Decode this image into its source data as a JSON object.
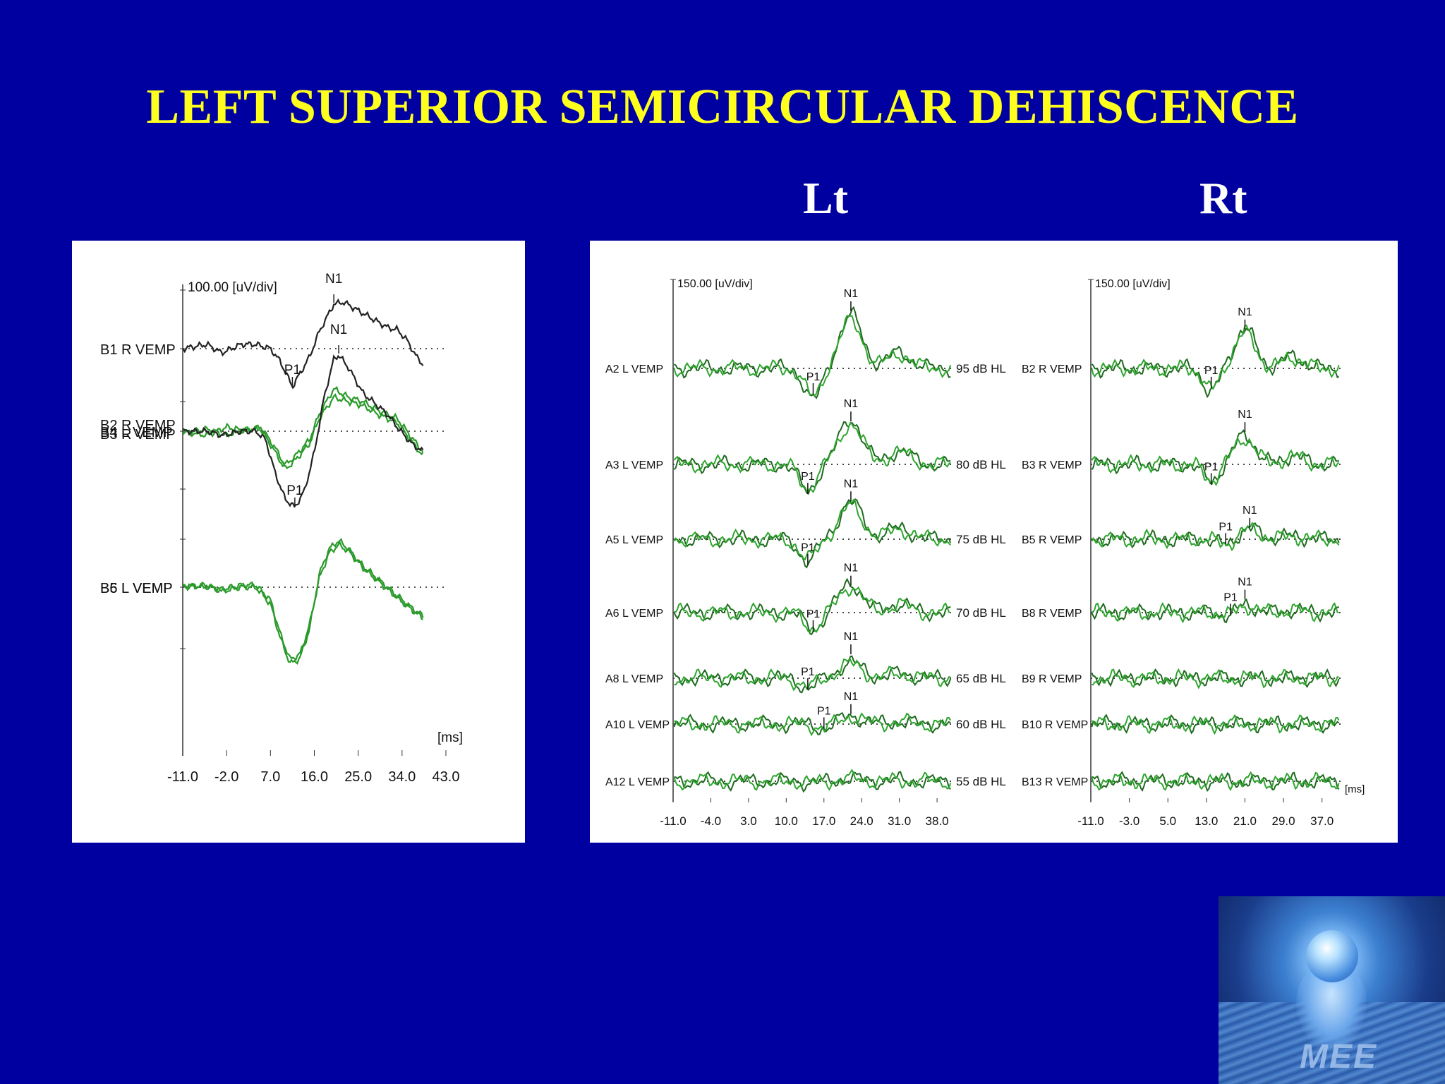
{
  "slide": {
    "title": "LEFT SUPERIOR SEMICIRCULAR DEHISCENCE",
    "label_lt": "Lt",
    "label_rt": "Rt"
  },
  "colors": {
    "background": "#0000a0",
    "title": "#ffff1e",
    "trace_green": "#2a9a2a",
    "trace_dark": "#1f5f1f",
    "trace_black": "#222222"
  },
  "logo": {
    "icon": "hands-holding-globe-logo",
    "text": "MEE"
  },
  "chart_data": [
    {
      "type": "line",
      "name": "left-panel",
      "scale_label": "100.00 [uV/div]",
      "unit_label": "[ms]",
      "x_ticks": [
        "-11.0",
        "-2.0",
        "7.0",
        "16.0",
        "25.0",
        "34.0",
        "43.0"
      ],
      "xlim": [
        -11,
        43
      ],
      "traces": [
        {
          "label": "B1  R VEMP",
          "baseline": 0,
          "color": "black",
          "shape": [
            [
              -11,
              0
            ],
            [
              -6,
              0.1
            ],
            [
              -3,
              -0.1
            ],
            [
              1,
              0.1
            ],
            [
              4,
              0.1
            ],
            [
              7,
              0
            ],
            [
              9,
              -0.3
            ],
            [
              11.5,
              -0.9
            ],
            [
              13,
              -0.6
            ],
            [
              15,
              -0.2
            ],
            [
              17,
              0.4
            ],
            [
              20,
              1.05
            ],
            [
              22,
              1.1
            ],
            [
              25,
              0.9
            ],
            [
              28,
              0.7
            ],
            [
              31,
              0.5
            ],
            [
              33,
              0.45
            ],
            [
              35,
              0.2
            ],
            [
              37,
              -0.2
            ],
            [
              38.5,
              -0.4
            ]
          ],
          "peaks": [
            {
              "label": "P1",
              "x": 11.5
            },
            {
              "label": "N1",
              "x": 20
            }
          ]
        },
        {
          "label": "B2  R VEMP",
          "baseline": 1,
          "color": "green",
          "shape": [
            [
              -11,
              0
            ],
            [
              -6,
              -0.1
            ],
            [
              -2,
              0.1
            ],
            [
              2,
              0
            ],
            [
              5,
              0.1
            ],
            [
              8,
              -0.4
            ],
            [
              10,
              -0.8
            ],
            [
              12,
              -0.6
            ],
            [
              15,
              -0.2
            ],
            [
              17,
              0.4
            ],
            [
              20,
              1.0
            ],
            [
              23,
              0.8
            ],
            [
              26,
              0.7
            ],
            [
              29,
              0.5
            ],
            [
              31,
              0.4
            ],
            [
              33,
              0.3
            ],
            [
              35,
              0
            ],
            [
              37,
              -0.3
            ],
            [
              38.5,
              -0.5
            ]
          ],
          "peaks": []
        },
        {
          "label": "B3  R VEMP",
          "baseline": 1,
          "color": "green",
          "shape": [
            [
              -11,
              -0.05
            ],
            [
              -6,
              0.05
            ],
            [
              -2,
              -0.1
            ],
            [
              2,
              0.05
            ],
            [
              5,
              0.05
            ],
            [
              8,
              -0.5
            ],
            [
              10,
              -0.9
            ],
            [
              12,
              -0.7
            ],
            [
              15,
              -0.3
            ],
            [
              17,
              0.3
            ],
            [
              20,
              0.8
            ],
            [
              23,
              0.7
            ],
            [
              26,
              0.6
            ],
            [
              29,
              0.4
            ],
            [
              31,
              0.3
            ],
            [
              33,
              0.2
            ],
            [
              35,
              -0.1
            ],
            [
              37,
              -0.4
            ],
            [
              38.5,
              -0.6
            ]
          ],
          "peaks": []
        },
        {
          "label": "B4  L VEMP",
          "baseline": 2,
          "color": "black",
          "shape": [
            [
              -11,
              0
            ],
            [
              -6,
              0
            ],
            [
              -3,
              -0.1
            ],
            [
              1,
              0
            ],
            [
              4,
              0
            ],
            [
              6,
              -0.2
            ],
            [
              8,
              -1.0
            ],
            [
              10,
              -1.6
            ],
            [
              12,
              -1.8
            ],
            [
              14,
              -1.4
            ],
            [
              16,
              -0.5
            ],
            [
              18,
              0.8
            ],
            [
              20,
              1.7
            ],
            [
              21,
              1.8
            ],
            [
              23,
              1.5
            ],
            [
              26,
              0.9
            ],
            [
              29,
              0.6
            ],
            [
              31,
              0.4
            ],
            [
              33,
              0.1
            ],
            [
              36,
              -0.3
            ],
            [
              38.5,
              -0.5
            ]
          ],
          "peaks": [
            {
              "label": "P1",
              "x": 12
            },
            {
              "label": "N1",
              "x": 21
            }
          ]
        },
        {
          "label": "B5  L VEMP",
          "baseline": 3,
          "color": "green",
          "shape": [
            [
              -11,
              0
            ],
            [
              -6,
              0.05
            ],
            [
              -3,
              -0.1
            ],
            [
              1,
              0
            ],
            [
              4,
              0
            ],
            [
              7,
              -0.4
            ],
            [
              9,
              -1.2
            ],
            [
              11,
              -1.8
            ],
            [
              13,
              -1.7
            ],
            [
              15,
              -1.0
            ],
            [
              17,
              0.3
            ],
            [
              19,
              0.9
            ],
            [
              21,
              1.1
            ],
            [
              23,
              0.9
            ],
            [
              26,
              0.5
            ],
            [
              29,
              0.2
            ],
            [
              32,
              -0.1
            ],
            [
              35,
              -0.4
            ],
            [
              38.5,
              -0.7
            ]
          ],
          "peaks": []
        },
        {
          "label": "B6  L VEMP",
          "baseline": 3,
          "color": "green",
          "shape": [
            [
              -11,
              0.05
            ],
            [
              -6,
              0
            ],
            [
              -3,
              -0.05
            ],
            [
              1,
              0.05
            ],
            [
              4,
              0.05
            ],
            [
              7,
              -0.3
            ],
            [
              9,
              -1.1
            ],
            [
              11,
              -1.7
            ],
            [
              13,
              -1.6
            ],
            [
              15,
              -0.9
            ],
            [
              17,
              0.2
            ],
            [
              19,
              0.8
            ],
            [
              21,
              1.0
            ],
            [
              23,
              0.85
            ],
            [
              26,
              0.45
            ],
            [
              29,
              0.15
            ],
            [
              32,
              -0.15
            ],
            [
              35,
              -0.45
            ],
            [
              38.5,
              -0.75
            ]
          ],
          "peaks": []
        }
      ]
    },
    {
      "type": "line",
      "name": "lt-panel",
      "scale_label": "150.00 [uV/div]",
      "x_ticks": [
        "-11.0",
        "-4.0",
        "3.0",
        "10.0",
        "17.0",
        "24.0",
        "31.0",
        "38.0"
      ],
      "xlim": [
        -11,
        41
      ],
      "traces": [
        {
          "label": "A2  L VEMP",
          "level": "95 dB HL",
          "amp": 1.0,
          "peaks": [
            {
              "label": "P1",
              "x": 15
            },
            {
              "label": "N1",
              "x": 22
            }
          ]
        },
        {
          "label": "A3  L VEMP",
          "level": "80 dB HL",
          "amp": 0.85,
          "peaks": [
            {
              "label": "P1",
              "x": 14
            },
            {
              "label": "N1",
              "x": 22
            }
          ]
        },
        {
          "label": "A5  L VEMP",
          "level": "75 dB HL",
          "amp": 0.7,
          "peaks": [
            {
              "label": "P1",
              "x": 14
            },
            {
              "label": "N1",
              "x": 22
            }
          ]
        },
        {
          "label": "A6  L VEMP",
          "level": "70 dB HL",
          "amp": 0.55,
          "peaks": [
            {
              "label": "P1",
              "x": 15
            },
            {
              "label": "N1",
              "x": 22
            }
          ]
        },
        {
          "label": "A8  L VEMP",
          "level": "65 dB HL",
          "amp": 0.3,
          "peaks": [
            {
              "label": "P1",
              "x": 14
            },
            {
              "label": "N1",
              "x": 22
            }
          ]
        },
        {
          "label": "A10  L VEMP",
          "level": "60 dB HL",
          "amp": 0.15,
          "peaks": [
            {
              "label": "P1",
              "x": 17
            },
            {
              "label": "N1",
              "x": 22
            }
          ]
        },
        {
          "label": "A12  L VEMP",
          "level": "55 dB HL",
          "amp": 0.05,
          "peaks": []
        }
      ]
    },
    {
      "type": "line",
      "name": "rt-panel",
      "scale_label": "150.00 [uV/div]",
      "unit_label": "[ms]",
      "x_ticks": [
        "-11.0",
        "-3.0",
        "5.0",
        "13.0",
        "21.0",
        "29.0",
        "37.0"
      ],
      "xlim": [
        -11,
        41
      ],
      "traces": [
        {
          "label": "B2  R VEMP",
          "amp": 0.75,
          "peaks": [
            {
              "label": "P1",
              "x": 14
            },
            {
              "label": "N1",
              "x": 21
            }
          ]
        },
        {
          "label": "B3  R VEMP",
          "amp": 0.55,
          "peaks": [
            {
              "label": "P1",
              "x": 14
            },
            {
              "label": "N1",
              "x": 21
            }
          ]
        },
        {
          "label": "B5  R VEMP",
          "amp": 0.2,
          "peaks": [
            {
              "label": "P1",
              "x": 17
            },
            {
              "label": "N1",
              "x": 22
            }
          ]
        },
        {
          "label": "B8  R VEMP",
          "amp": 0.15,
          "peaks": [
            {
              "label": "P1",
              "x": 18
            },
            {
              "label": "N1",
              "x": 21
            }
          ]
        },
        {
          "label": "B9  R VEMP",
          "amp": 0.0,
          "peaks": []
        },
        {
          "label": "B10  R VEMP",
          "amp": 0.0,
          "peaks": []
        },
        {
          "label": "B13  R VEMP",
          "amp": 0.0,
          "peaks": []
        }
      ]
    }
  ]
}
